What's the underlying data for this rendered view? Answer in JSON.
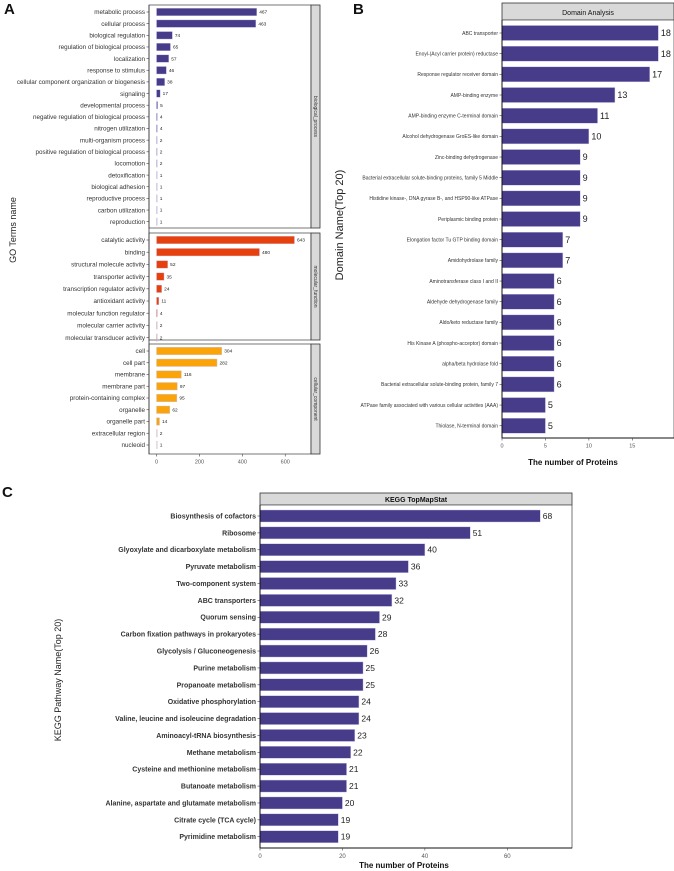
{
  "chart_data": [
    {
      "panel_label": "A",
      "type": "bar",
      "orientation": "horizontal",
      "ylabel": "GO Terms name",
      "xlabel": "",
      "xlim": [
        0,
        700
      ],
      "xticks": [
        0,
        200,
        400,
        600
      ],
      "facets": [
        {
          "name": "biological_process",
          "color": "#463c8a",
          "categories": [
            "metabolic process",
            "cellular process",
            "biological regulation",
            "regulation of biological process",
            "localization",
            "response to stimulus",
            "cellular component organization or biogenesis",
            "signaling",
            "developmental process",
            "negative regulation of biological process",
            "nitrogen utilization",
            "multi-organism process",
            "positive regulation of biological process",
            "locomotion",
            "detoxification",
            "biological adhesion",
            "reproductive process",
            "carbon utilization",
            "reproduction"
          ],
          "values": [
            467,
            463,
            74,
            65,
            57,
            46,
            38,
            17,
            5,
            4,
            4,
            2,
            2,
            2,
            1,
            1,
            1,
            1,
            1
          ]
        },
        {
          "name": "molecular_function",
          "color": "#e8400c",
          "categories": [
            "catalytic activity",
            "binding",
            "structural molecule activity",
            "transporter activity",
            "transcription regulator activity",
            "antioxidant activity",
            "molecular function regulator",
            "molecular carrier activity",
            "molecular transducer activity"
          ],
          "values": [
            643,
            480,
            52,
            35,
            24,
            11,
            4,
            2,
            2
          ]
        },
        {
          "name": "cellular_component",
          "color": "#fba40a",
          "categories": [
            "cell",
            "cell part",
            "membrane",
            "membrane part",
            "protein-containing complex",
            "organelle",
            "organelle part",
            "extracellular region",
            "nucleoid"
          ],
          "values": [
            304,
            282,
            116,
            97,
            95,
            62,
            14,
            2,
            1
          ]
        }
      ]
    },
    {
      "panel_label": "B",
      "type": "bar",
      "orientation": "horizontal",
      "title": "Domain Analysis",
      "xlabel": "The number of Proteins",
      "ylabel": "Domain Name(Top 20)",
      "xlim": [
        0,
        19.8
      ],
      "xticks": [
        0,
        5,
        10,
        15
      ],
      "color": "#463c8a",
      "categories": [
        "ABC transporter",
        "Enoyl-(Acyl carrier protein) reductase",
        "Response regulator receiver domain",
        "AMP-binding enzyme",
        "AMP-binding enzyme C-terminal domain",
        "Alcohol dehydrogenase GroES-like domain",
        "Zinc-binding dehydrogenase",
        "Bacterial extracellular solute-binding proteins, family 5 Middle",
        "Histidine kinase-, DNA gyrase B-, and HSP90-like ATPase",
        "Periplasmic binding protein",
        "Elongation factor Tu GTP binding domain",
        "Amidohydrolase family",
        "Aminotransferase class I and II",
        "Aldehyde dehydrogenase family",
        "Aldo/keto reductase family",
        "His Kinase A (phospho-acceptor) domain",
        "alpha/beta hydrolase fold",
        "Bacterial extracellular solute-binding protein, family 7",
        "ATPase family associated with various cellular activities (AAA)",
        "Thiolase, N-terminal domain"
      ],
      "values": [
        18,
        18,
        17,
        13,
        11,
        10,
        9,
        9,
        9,
        9,
        7,
        7,
        6,
        6,
        6,
        6,
        6,
        6,
        5,
        5
      ]
    },
    {
      "panel_label": "C",
      "type": "bar",
      "orientation": "horizontal",
      "title": "KEGG TopMapStat",
      "xlabel": "The number of Proteins",
      "ylabel": "KEGG Pathway Name(Top 20)",
      "xlim": [
        0,
        75.7
      ],
      "xticks": [
        0,
        20,
        40,
        60
      ],
      "color": "#463c8a",
      "categories": [
        "Biosynthesis of cofactors",
        "Ribosome",
        "Glyoxylate and dicarboxylate metabolism",
        "Pyruvate metabolism",
        "Two-component system",
        "ABC transporters",
        "Quorum sensing",
        "Carbon fixation pathways in prokaryotes",
        "Glycolysis / Gluconeogenesis",
        "Purine metabolism",
        "Propanoate metabolism",
        "Oxidative phosphorylation",
        "Valine, leucine and isoleucine degradation",
        "Aminoacyl-tRNA biosynthesis",
        "Methane metabolism",
        "Cysteine and methionine metabolism",
        "Butanoate metabolism",
        "Alanine, aspartate and glutamate metabolism",
        "Citrate cycle (TCA cycle)",
        "Pyrimidine metabolism"
      ],
      "values": [
        68,
        51,
        40,
        36,
        33,
        32,
        29,
        28,
        26,
        25,
        25,
        24,
        24,
        23,
        22,
        21,
        21,
        20,
        19,
        19
      ]
    }
  ]
}
